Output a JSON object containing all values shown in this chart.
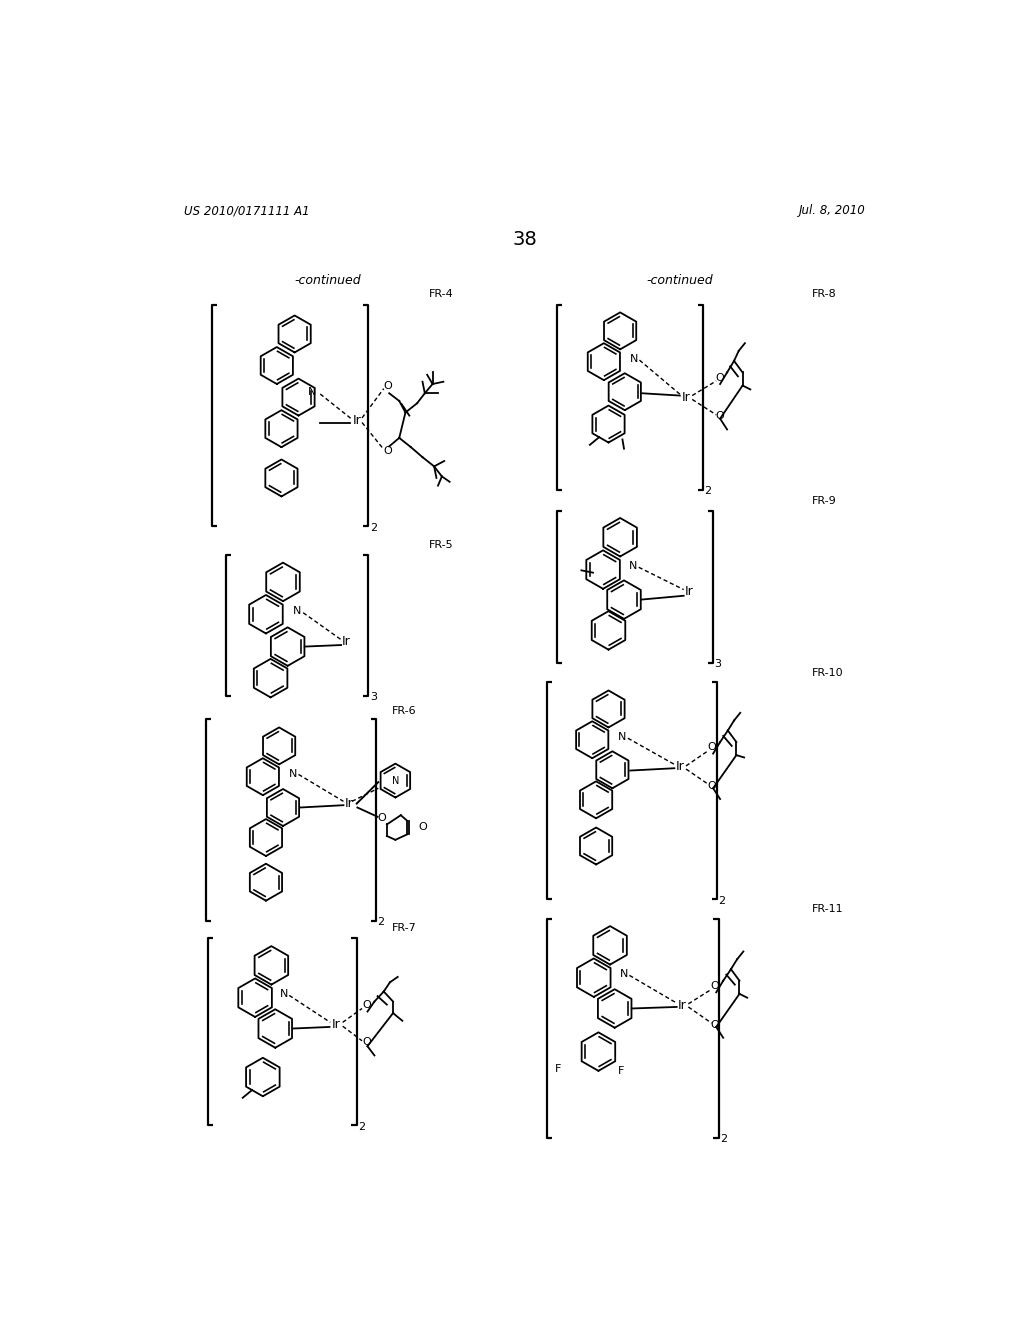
{
  "page_number": "38",
  "patent_number": "US 2010/0171111 A1",
  "patent_date": "Jul. 8, 2010",
  "background_color": "#ffffff",
  "text_color": "#000000",
  "labels": {
    "continued_left": "-continued",
    "continued_right": "-continued",
    "FR4": "FR-4",
    "FR5": "FR-5",
    "FR6": "FR-6",
    "FR7": "FR-7",
    "FR8": "FR-8",
    "FR9": "FR-9",
    "FR10": "FR-10",
    "FR11": "FR-11"
  },
  "font_size_label": 9,
  "font_size_page": 12,
  "font_size_patent": 8.5
}
